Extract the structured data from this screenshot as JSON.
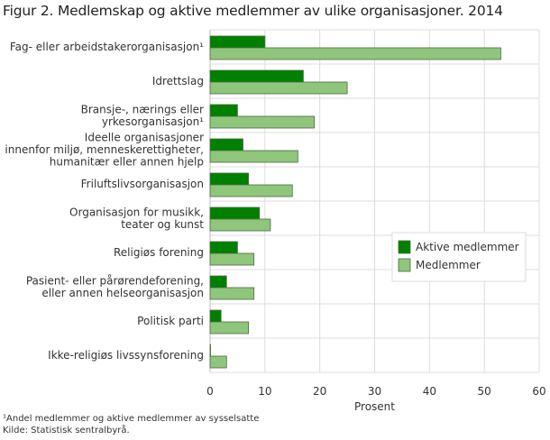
{
  "chart_data": {
    "type": "bar",
    "orientation": "horizontal",
    "title": "Figur 2. Medlemskap og aktive medlemmer av ulike organisasjoner. 2014",
    "categories": [
      [
        "Fag- eller arbeidstakerorganisasjon¹"
      ],
      [
        "Idrettslag"
      ],
      [
        "Bransje-, nærings eller",
        "yrkesorganisasjon¹"
      ],
      [
        "Ideelle organisasjoner",
        "innenfor miljø, menneskerettigheter,",
        "humanitær eller annen hjelp"
      ],
      [
        "Friluftslivsorganisasjon"
      ],
      [
        "Organisasjon for musikk,",
        "teater og kunst"
      ],
      [
        "Religiøs forening"
      ],
      [
        "Pasient- eller pårørendeforening,",
        "eller annen helseorganisasjon"
      ],
      [
        "Politisk parti"
      ],
      [
        "Ikke-religiøs livssynsforening"
      ]
    ],
    "series": [
      {
        "name": "Aktive medlemmer",
        "color": "#008000",
        "values": [
          10,
          17,
          5,
          6,
          7,
          9,
          5,
          3,
          2,
          0
        ]
      },
      {
        "name": "Medlemmer",
        "color": "#90c67c",
        "values": [
          53,
          25,
          19,
          16,
          15,
          11,
          8,
          8,
          7,
          3
        ]
      }
    ],
    "xlabel": "Prosent",
    "xlim": [
      0,
      60
    ],
    "xticks": [
      "0",
      "10",
      "20",
      "30",
      "40",
      "50",
      "60"
    ],
    "grid": true,
    "legend_position": "right-middle"
  },
  "footnote": "¹Andel medlemmer og aktive medlemmer av sysselsatte",
  "source": "Kilde: Statistisk sentralbyrå."
}
